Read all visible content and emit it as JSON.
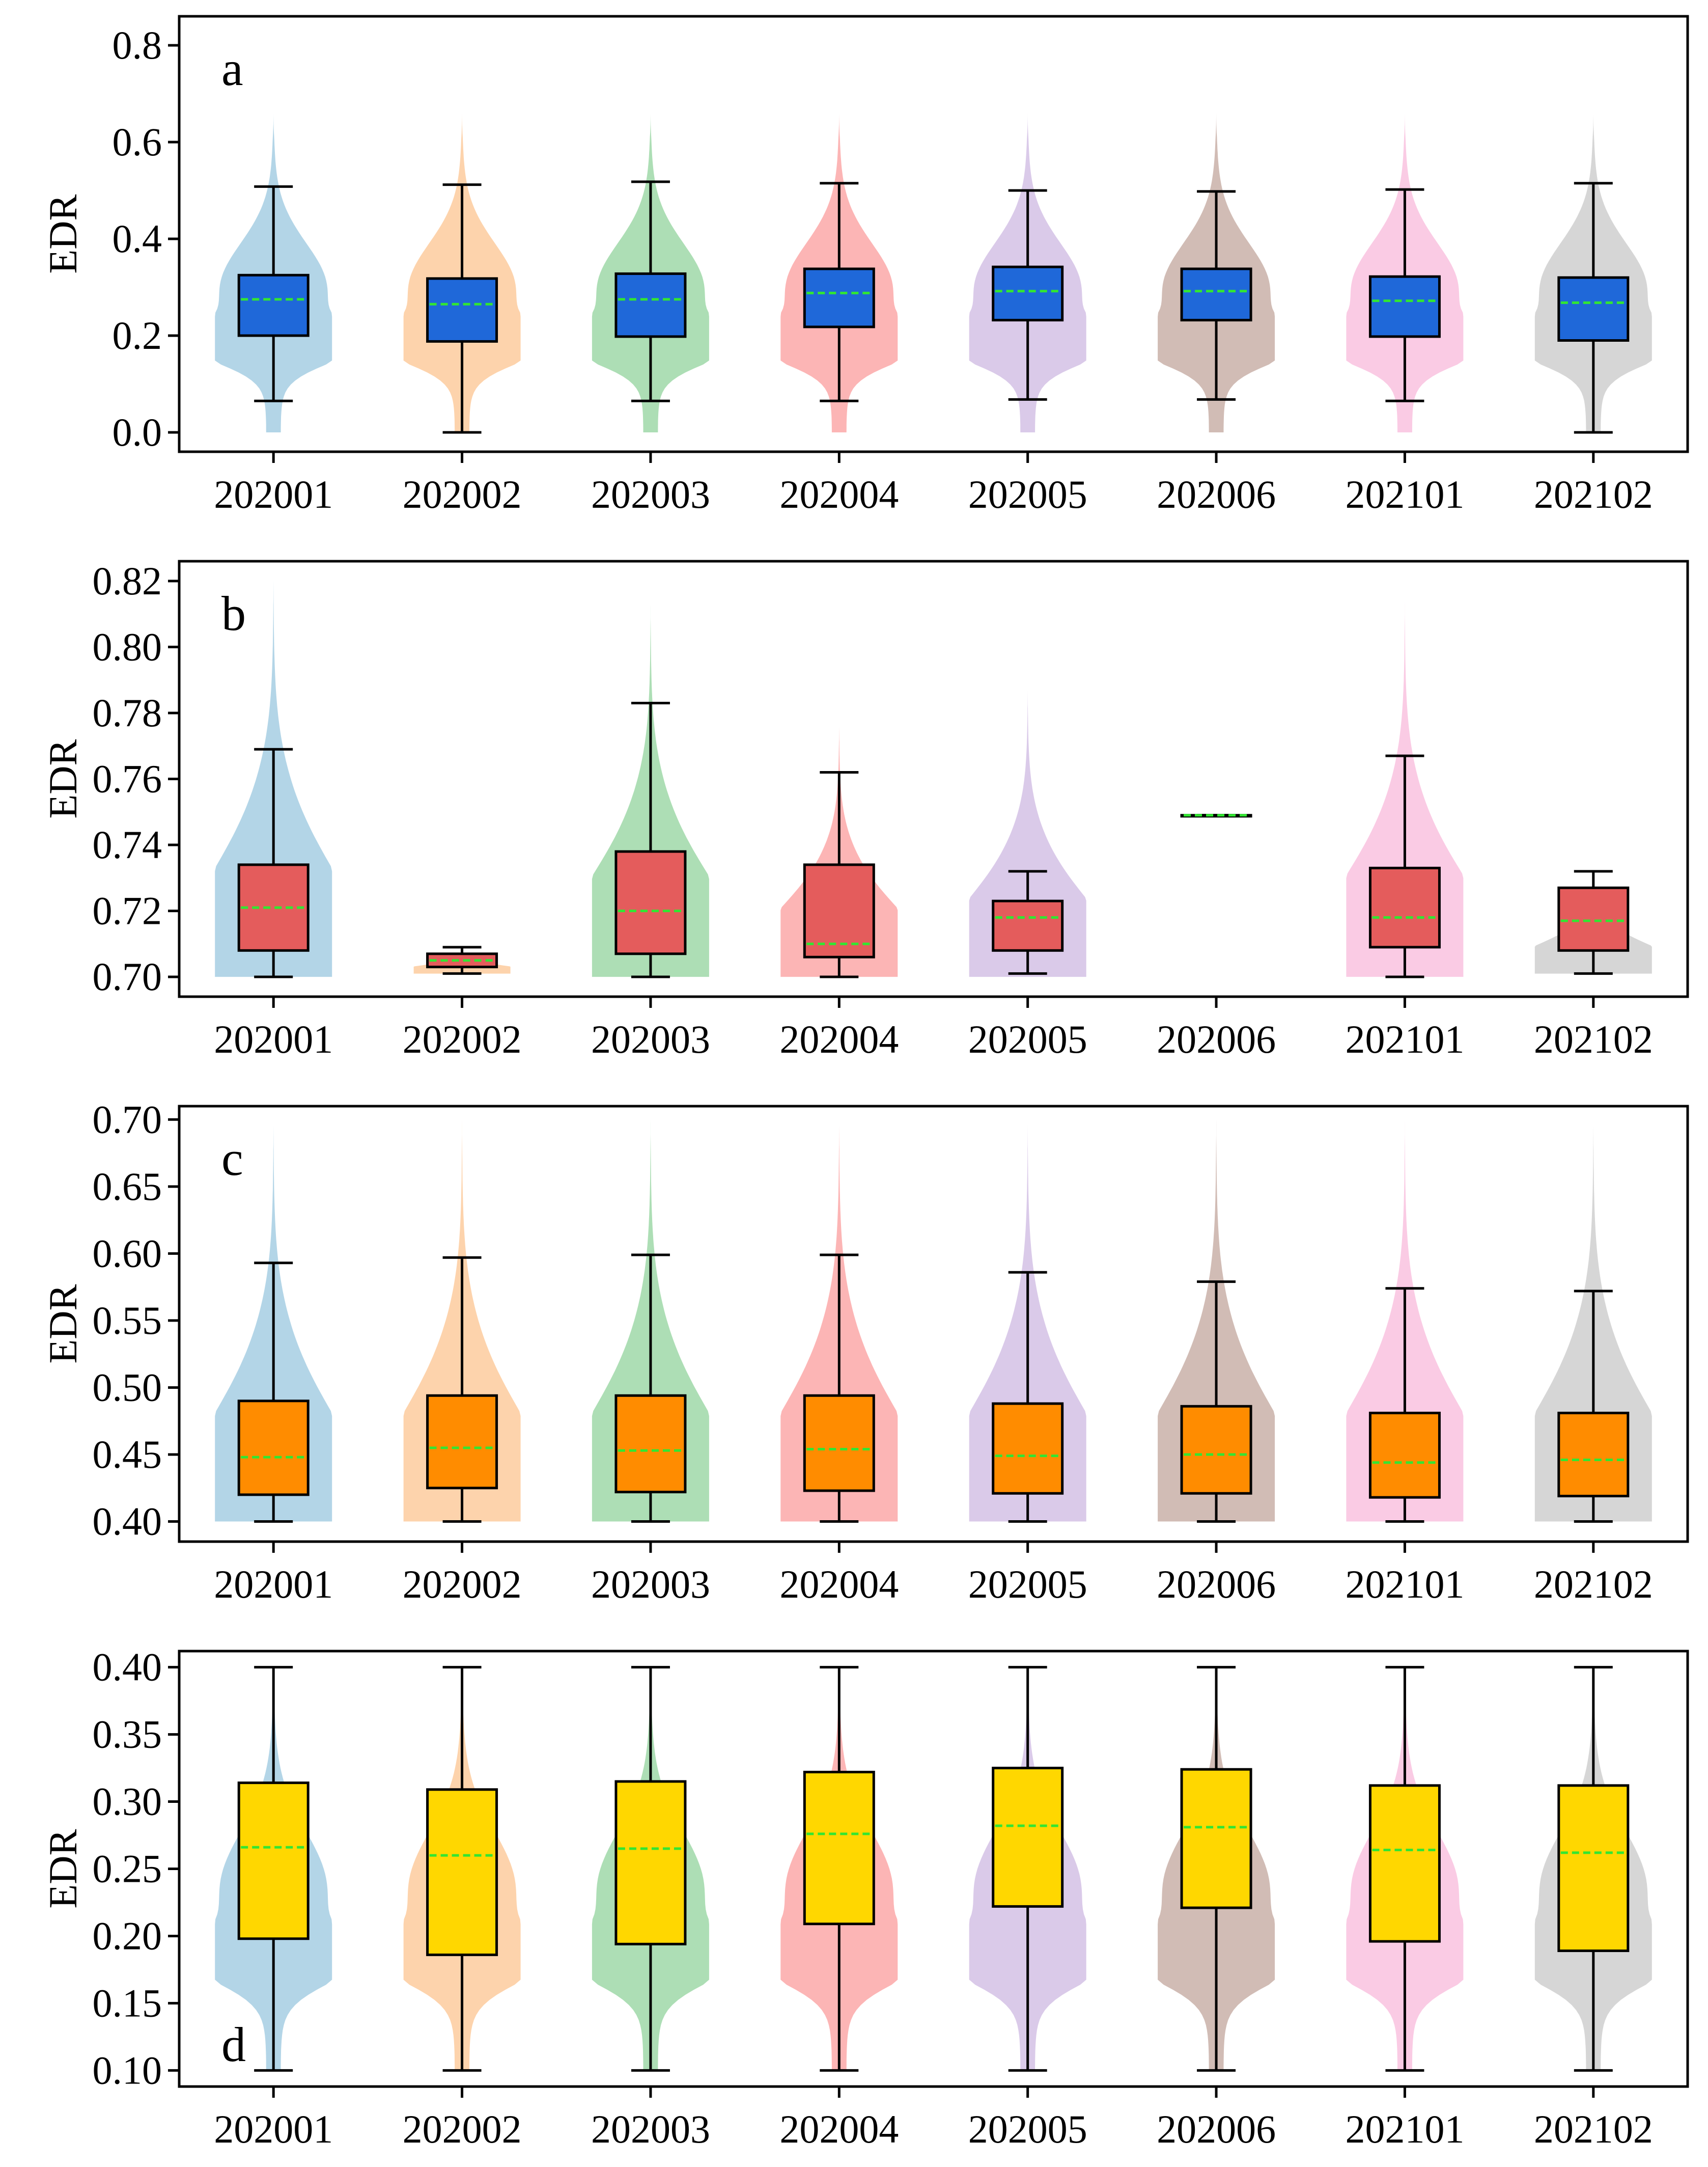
{
  "figure": {
    "type": "violin-box-composite"
  },
  "colors": {
    "violins": [
      "#a6cee3",
      "#fdcb9e",
      "#9fd8a8",
      "#fba8a8",
      "#d3c1e5",
      "#c9b0a8",
      "#f9c2df",
      "#cfcfcf"
    ],
    "median_line": "#32e632",
    "axis": "#000000"
  },
  "chart_data": [
    {
      "type": "box+violin",
      "panel_label": "a",
      "ylabel": "EDR",
      "categories": [
        "202001",
        "202002",
        "202003",
        "202004",
        "202005",
        "202006",
        "202101",
        "202102"
      ],
      "ylim": [
        -0.04,
        0.86
      ],
      "yticks": [
        0.0,
        0.2,
        0.4,
        0.6,
        0.8
      ],
      "ytick_labels": [
        "0.0",
        "0.2",
        "0.4",
        "0.6",
        "0.8"
      ],
      "box_color": "#1f68d9",
      "boxes": [
        {
          "whislo": 0.065,
          "q1": 0.2,
          "med": 0.275,
          "q3": 0.325,
          "whishi": 0.508
        },
        {
          "whislo": 0.0,
          "q1": 0.188,
          "med": 0.265,
          "q3": 0.318,
          "whishi": 0.512
        },
        {
          "whislo": 0.065,
          "q1": 0.198,
          "med": 0.275,
          "q3": 0.328,
          "whishi": 0.518
        },
        {
          "whislo": 0.065,
          "q1": 0.218,
          "med": 0.288,
          "q3": 0.338,
          "whishi": 0.515
        },
        {
          "whislo": 0.068,
          "q1": 0.232,
          "med": 0.292,
          "q3": 0.342,
          "whishi": 0.5
        },
        {
          "whislo": 0.068,
          "q1": 0.232,
          "med": 0.292,
          "q3": 0.338,
          "whishi": 0.498
        },
        {
          "whislo": 0.065,
          "q1": 0.198,
          "med": 0.272,
          "q3": 0.322,
          "whishi": 0.502
        },
        {
          "whislo": 0.0,
          "q1": 0.19,
          "med": 0.268,
          "q3": 0.32,
          "whishi": 0.515
        }
      ],
      "violin_range": [
        0.0,
        0.66
      ],
      "violin_shape": "bimodal-low-peak"
    },
    {
      "type": "box+violin",
      "panel_label": "b",
      "ylabel": "EDR",
      "categories": [
        "202001",
        "202002",
        "202003",
        "202004",
        "202005",
        "202006",
        "202101",
        "202102"
      ],
      "ylim": [
        0.694,
        0.826
      ],
      "yticks": [
        0.7,
        0.72,
        0.74,
        0.76,
        0.78,
        0.8,
        0.82
      ],
      "ytick_labels": [
        "0.70",
        "0.72",
        "0.74",
        "0.76",
        "0.78",
        "0.80",
        "0.82"
      ],
      "box_color": "#e45c5c",
      "boxes": [
        {
          "whislo": 0.7,
          "q1": 0.708,
          "med": 0.721,
          "q3": 0.734,
          "whishi": 0.769
        },
        {
          "whislo": 0.701,
          "q1": 0.703,
          "med": 0.705,
          "q3": 0.707,
          "whishi": 0.709
        },
        {
          "whislo": 0.7,
          "q1": 0.707,
          "med": 0.72,
          "q3": 0.738,
          "whishi": 0.783
        },
        {
          "whislo": 0.7,
          "q1": 0.706,
          "med": 0.71,
          "q3": 0.734,
          "whishi": 0.762
        },
        {
          "whislo": 0.701,
          "q1": 0.708,
          "med": 0.718,
          "q3": 0.723,
          "whishi": 0.732
        },
        {
          "whislo": 0.749,
          "q1": 0.749,
          "med": 0.749,
          "q3": 0.749,
          "whishi": 0.749
        },
        {
          "whislo": 0.7,
          "q1": 0.709,
          "med": 0.718,
          "q3": 0.733,
          "whishi": 0.767
        },
        {
          "whislo": 0.701,
          "q1": 0.708,
          "med": 0.717,
          "q3": 0.727,
          "whishi": 0.732
        }
      ],
      "violin_ranges": [
        [
          0.7,
          0.822
        ],
        [
          0.701,
          0.709
        ],
        [
          0.7,
          0.813
        ],
        [
          0.7,
          0.777
        ],
        [
          0.7,
          0.788
        ],
        [
          0.749,
          0.749
        ],
        [
          0.7,
          0.814
        ],
        [
          0.701,
          0.732
        ]
      ],
      "violin_shape": "bottom-heavy"
    },
    {
      "type": "box+violin",
      "panel_label": "c",
      "ylabel": "EDR",
      "categories": [
        "202001",
        "202002",
        "202003",
        "202004",
        "202005",
        "202006",
        "202101",
        "202102"
      ],
      "ylim": [
        0.385,
        0.71
      ],
      "yticks": [
        0.4,
        0.45,
        0.5,
        0.55,
        0.6,
        0.65,
        0.7
      ],
      "ytick_labels": [
        "0.40",
        "0.45",
        "0.50",
        "0.55",
        "0.60",
        "0.65",
        "0.70"
      ],
      "box_color": "#ff8c00",
      "boxes": [
        {
          "whislo": 0.4,
          "q1": 0.42,
          "med": 0.448,
          "q3": 0.49,
          "whishi": 0.593
        },
        {
          "whislo": 0.4,
          "q1": 0.425,
          "med": 0.455,
          "q3": 0.494,
          "whishi": 0.597
        },
        {
          "whislo": 0.4,
          "q1": 0.422,
          "med": 0.453,
          "q3": 0.494,
          "whishi": 0.599
        },
        {
          "whislo": 0.4,
          "q1": 0.423,
          "med": 0.454,
          "q3": 0.494,
          "whishi": 0.599
        },
        {
          "whislo": 0.4,
          "q1": 0.421,
          "med": 0.449,
          "q3": 0.488,
          "whishi": 0.586
        },
        {
          "whislo": 0.4,
          "q1": 0.421,
          "med": 0.45,
          "q3": 0.486,
          "whishi": 0.579
        },
        {
          "whislo": 0.4,
          "q1": 0.418,
          "med": 0.444,
          "q3": 0.481,
          "whishi": 0.574
        },
        {
          "whislo": 0.4,
          "q1": 0.419,
          "med": 0.446,
          "q3": 0.481,
          "whishi": 0.572
        }
      ],
      "violin_range": [
        0.4,
        0.7
      ],
      "violin_shape": "bottom-heavy"
    },
    {
      "type": "box+violin",
      "panel_label": "d",
      "ylabel": "EDR",
      "categories": [
        "202001",
        "202002",
        "202003",
        "202004",
        "202005",
        "202006",
        "202101",
        "202102"
      ],
      "ylim": [
        0.088,
        0.412
      ],
      "yticks": [
        0.1,
        0.15,
        0.2,
        0.25,
        0.3,
        0.35,
        0.4
      ],
      "ytick_labels": [
        "0.10",
        "0.15",
        "0.20",
        "0.25",
        "0.30",
        "0.35",
        "0.40"
      ],
      "box_color": "#ffd700",
      "boxes": [
        {
          "whislo": 0.1,
          "q1": 0.198,
          "med": 0.266,
          "q3": 0.314,
          "whishi": 0.4
        },
        {
          "whislo": 0.1,
          "q1": 0.186,
          "med": 0.26,
          "q3": 0.309,
          "whishi": 0.4
        },
        {
          "whislo": 0.1,
          "q1": 0.194,
          "med": 0.265,
          "q3": 0.315,
          "whishi": 0.4
        },
        {
          "whislo": 0.1,
          "q1": 0.209,
          "med": 0.276,
          "q3": 0.322,
          "whishi": 0.4
        },
        {
          "whislo": 0.1,
          "q1": 0.222,
          "med": 0.282,
          "q3": 0.325,
          "whishi": 0.4
        },
        {
          "whislo": 0.1,
          "q1": 0.221,
          "med": 0.281,
          "q3": 0.324,
          "whishi": 0.4
        },
        {
          "whislo": 0.1,
          "q1": 0.196,
          "med": 0.264,
          "q3": 0.312,
          "whishi": 0.4
        },
        {
          "whislo": 0.1,
          "q1": 0.189,
          "med": 0.262,
          "q3": 0.312,
          "whishi": 0.4
        }
      ],
      "violin_range": [
        0.1,
        0.4
      ],
      "violin_shape": "bimodal-low-peak"
    }
  ]
}
